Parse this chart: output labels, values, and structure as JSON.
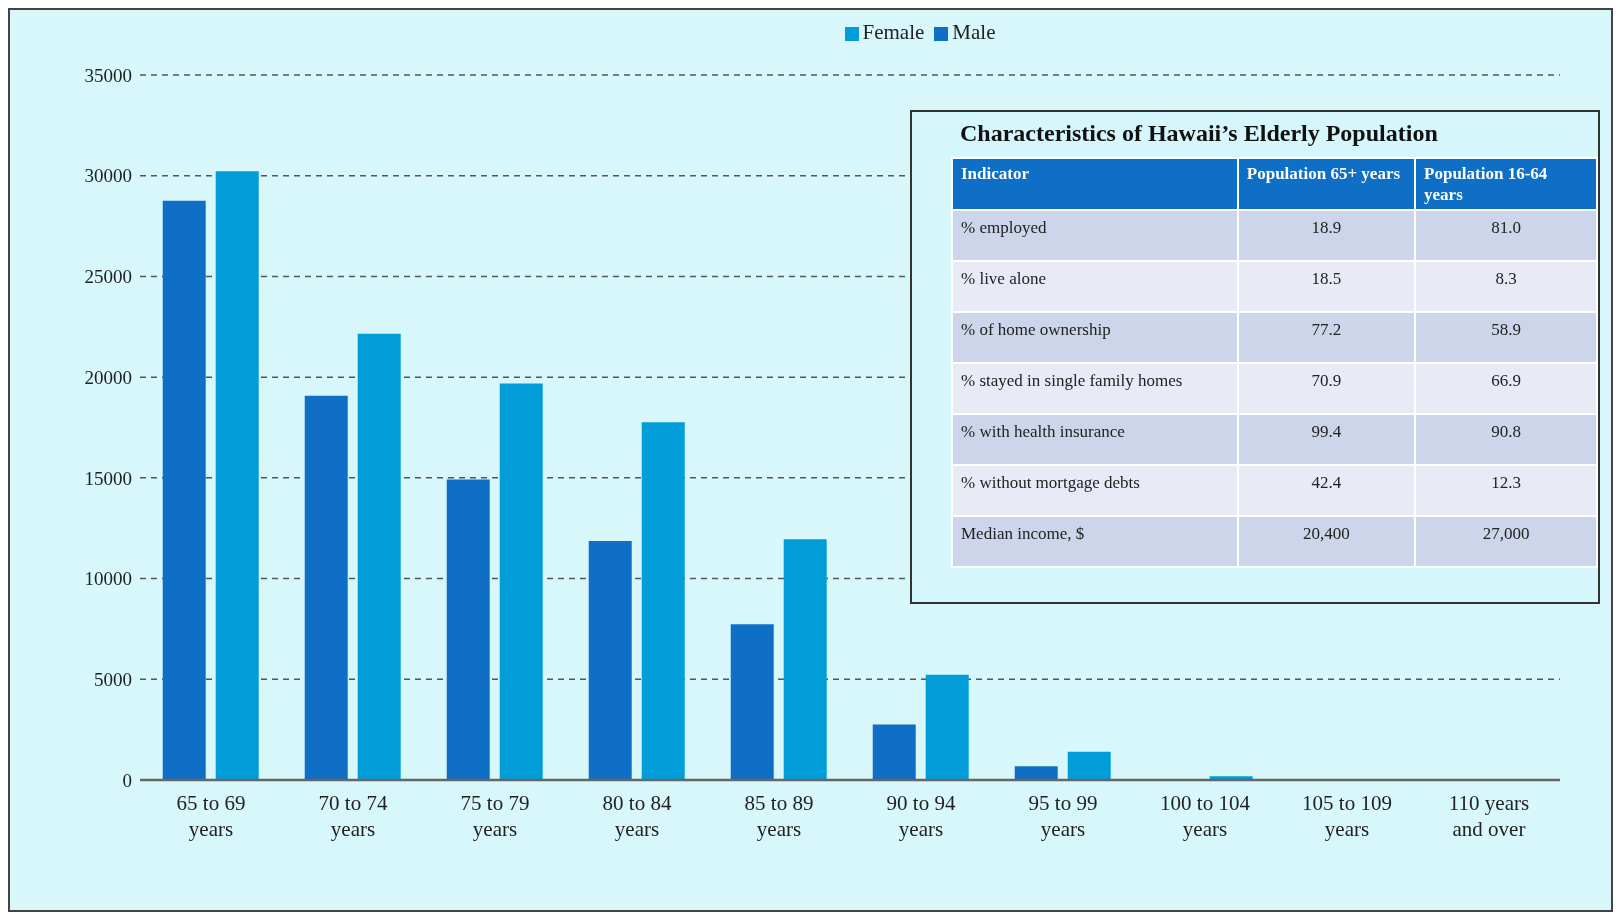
{
  "chart_data": [
    {
      "type": "bar",
      "categories": [
        "65 to 69 years",
        "70 to 74 years",
        "75 to 79 years",
        "80 to 84 years",
        "85 to 89 years",
        "90 to 94 years",
        "95 to 99 years",
        "100 to 104 years",
        "105 to 109 years",
        "110 years and over"
      ],
      "series": [
        {
          "name": "Male",
          "color": "#0f6fc6",
          "values": [
            28760,
            19080,
            14920,
            11870,
            7730,
            2760,
            680,
            40,
            0,
            0
          ]
        },
        {
          "name": "Female",
          "color": "#009dd9",
          "values": [
            30220,
            22160,
            19680,
            17760,
            11950,
            5230,
            1400,
            190,
            0,
            0
          ]
        }
      ],
      "ylim": [
        0,
        35000
      ],
      "yticks": [
        0,
        5000,
        10000,
        15000,
        20000,
        25000,
        30000,
        35000
      ],
      "grid": "y",
      "legend": "top"
    },
    {
      "type": "other",
      "title": "Characteristics of Hawaii’s Elderly Population",
      "annotations": [
        "Indicator",
        "Population 65+ years",
        "Population 16-64 years",
        "% employed",
        "18.9",
        "81.0",
        "% live alone",
        "18.5",
        "8.3",
        "% of home ownership",
        "77.2",
        "58.9",
        "% stayed in single family homes",
        "70.9",
        "66.9",
        "% with health insurance",
        "99.4",
        "90.8",
        "% without mortgage debts",
        "42.4",
        "12.3",
        "Median income, $",
        "20,400",
        "27,000"
      ]
    }
  ]
}
